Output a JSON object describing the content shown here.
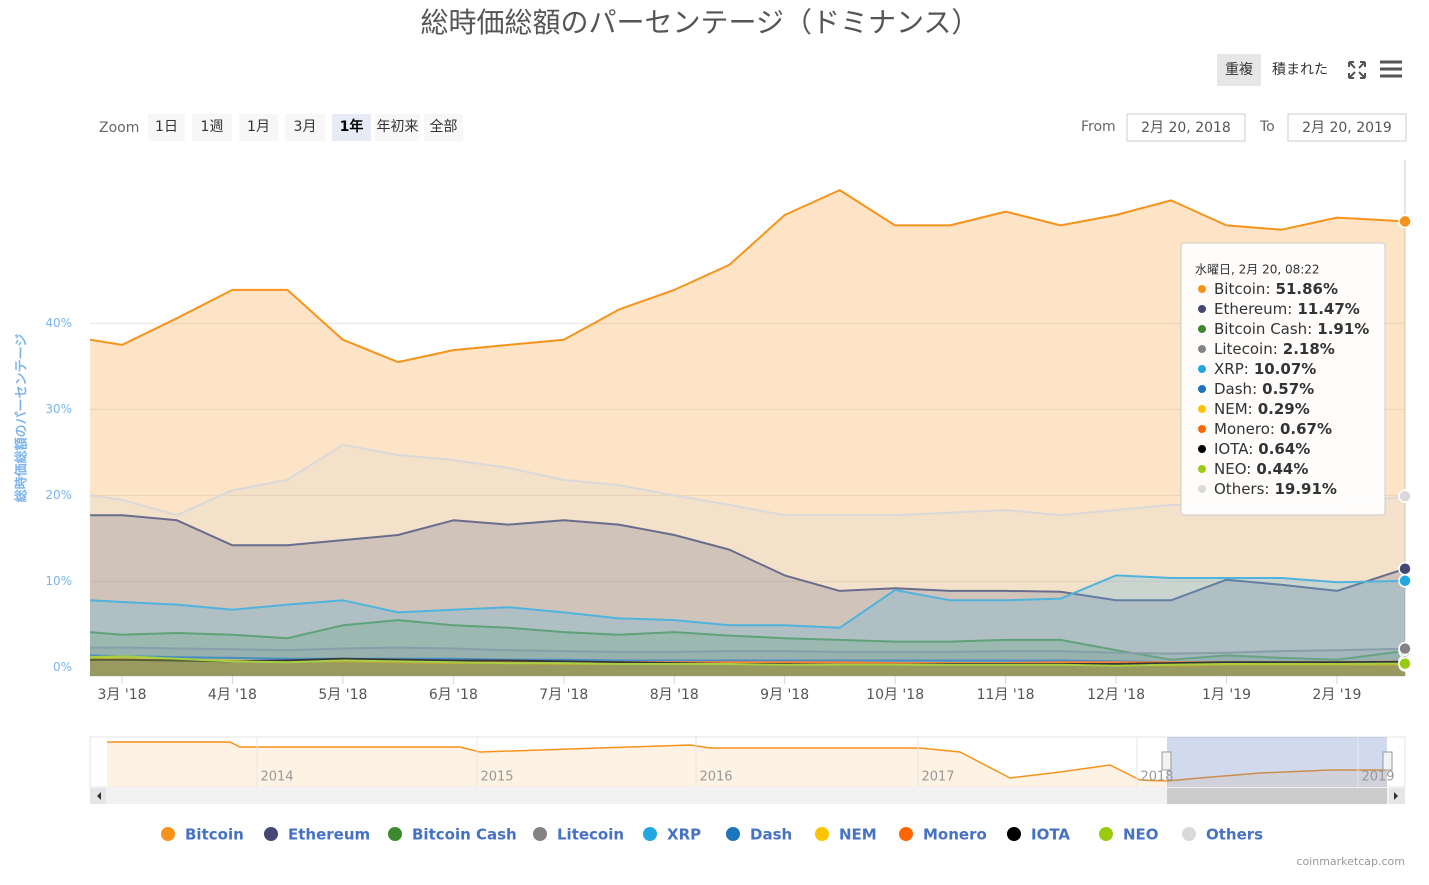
{
  "chart_data": {
    "type": "area",
    "title": "総時価総額のパーセンテージ（ドミナンス）",
    "y_axis_label": "総時価総額のパーセンテージ",
    "categories": [
      null,
      "3月 '18",
      null,
      "4月 '18",
      null,
      "5月 '18",
      null,
      "6月 '18",
      null,
      "7月 '18",
      null,
      "8月 '18",
      null,
      "9月 '18",
      null,
      "10月 '18",
      null,
      "11月 '18",
      null,
      "12月 '18",
      null,
      "1月 '19",
      null,
      "2月 '19",
      null
    ],
    "ylim": [
      -1,
      59
    ],
    "yticks": [
      {
        "value": 0,
        "label": "0%"
      },
      {
        "value": 10,
        "label": "10%"
      },
      {
        "value": 20,
        "label": "20%"
      },
      {
        "value": 30,
        "label": "30%"
      },
      {
        "value": 40,
        "label": "40%"
      }
    ],
    "grid": true,
    "series": [
      {
        "name": "Bitcoin",
        "color": "#f7931a",
        "values": [
          38.1,
          37.5,
          40.6,
          43.9,
          43.9,
          38.1,
          35.5,
          36.9,
          37.5,
          38.1,
          41.6,
          43.9,
          46.8,
          52.6,
          55.5,
          51.4,
          51.4,
          53.0,
          51.4,
          52.6,
          54.3,
          51.4,
          50.9,
          52.3,
          51.86
        ]
      },
      {
        "name": "Ethereum",
        "color": "#434874",
        "values": [
          17.7,
          17.7,
          17.1,
          14.2,
          14.2,
          14.8,
          15.4,
          17.1,
          16.6,
          17.1,
          16.6,
          15.4,
          13.7,
          10.7,
          8.9,
          9.2,
          8.9,
          8.9,
          8.8,
          7.8,
          7.8,
          10.2,
          9.6,
          8.9,
          11.47
        ]
      },
      {
        "name": "Bitcoin Cash",
        "color": "#3c8a2e",
        "values": [
          4.1,
          3.8,
          4.0,
          3.8,
          3.4,
          4.9,
          5.5,
          4.9,
          4.6,
          4.1,
          3.8,
          4.1,
          3.7,
          3.4,
          3.2,
          3.0,
          3.0,
          3.2,
          3.2,
          2.0,
          0.9,
          1.4,
          1.1,
          0.9,
          1.91
        ]
      },
      {
        "name": "Litecoin",
        "color": "#838383",
        "values": [
          2.3,
          2.3,
          2.2,
          2.1,
          2.0,
          2.2,
          2.3,
          2.2,
          2.0,
          1.9,
          1.8,
          1.8,
          1.9,
          1.9,
          1.8,
          1.8,
          1.8,
          1.9,
          1.9,
          1.7,
          1.6,
          1.7,
          1.9,
          2.0,
          2.18
        ]
      },
      {
        "name": "XRP",
        "color": "#23a7e0",
        "values": [
          7.8,
          7.6,
          7.3,
          6.7,
          7.3,
          7.8,
          6.4,
          6.7,
          7.0,
          6.4,
          5.7,
          5.5,
          4.9,
          4.9,
          4.6,
          9.0,
          7.8,
          7.8,
          8.0,
          10.7,
          10.4,
          10.4,
          10.4,
          9.9,
          10.07
        ]
      },
      {
        "name": "Dash",
        "color": "#1c75bc",
        "values": [
          1.4,
          1.3,
          1.2,
          1.1,
          1.0,
          1.0,
          1.0,
          1.0,
          0.9,
          0.9,
          0.8,
          0.8,
          0.8,
          0.8,
          0.8,
          0.8,
          0.8,
          0.8,
          0.8,
          0.7,
          0.6,
          0.6,
          0.6,
          0.6,
          0.57
        ]
      },
      {
        "name": "NEM",
        "color": "#fdc300",
        "values": [
          1.1,
          1.0,
          0.9,
          0.8,
          0.7,
          0.7,
          0.6,
          0.5,
          0.5,
          0.4,
          0.4,
          0.4,
          0.4,
          0.4,
          0.3,
          0.3,
          0.3,
          0.3,
          0.3,
          0.3,
          0.2,
          0.3,
          0.3,
          0.3,
          0.29
        ]
      },
      {
        "name": "Monero",
        "color": "#ff6600",
        "values": [
          0.9,
          0.9,
          0.8,
          0.7,
          0.7,
          0.8,
          0.7,
          0.7,
          0.6,
          0.6,
          0.6,
          0.6,
          0.6,
          0.6,
          0.6,
          0.5,
          0.5,
          0.5,
          0.6,
          0.6,
          0.6,
          0.6,
          0.6,
          0.6,
          0.67
        ]
      },
      {
        "name": "IOTA",
        "color": "#000000",
        "values": [
          0.9,
          0.9,
          0.8,
          0.7,
          0.8,
          1.0,
          0.9,
          0.8,
          0.8,
          0.7,
          0.6,
          0.5,
          0.4,
          0.4,
          0.3,
          0.3,
          0.4,
          0.4,
          0.4,
          0.4,
          0.5,
          0.6,
          0.6,
          0.6,
          0.64
        ]
      },
      {
        "name": "NEO",
        "color": "#99cc11",
        "values": [
          1.2,
          1.3,
          1.0,
          0.7,
          0.6,
          0.8,
          0.7,
          0.6,
          0.5,
          0.5,
          0.4,
          0.4,
          0.4,
          0.3,
          0.3,
          0.3,
          0.3,
          0.3,
          0.3,
          0.2,
          0.3,
          0.4,
          0.4,
          0.4,
          0.44
        ]
      },
      {
        "name": "Others",
        "color": "#d9d9d9",
        "values": [
          20.0,
          19.5,
          17.7,
          20.6,
          21.8,
          25.9,
          24.7,
          24.1,
          23.2,
          21.8,
          21.2,
          20.0,
          18.9,
          17.7,
          17.7,
          17.7,
          18.0,
          18.3,
          17.7,
          18.3,
          18.9,
          18.9,
          18.9,
          18.9,
          19.91
        ]
      }
    ],
    "tooltip": {
      "title": "水曜日, 2月 20, 08:22",
      "separator": ":",
      "labels": [
        "51.86%",
        "11.47%",
        "1.91%",
        "2.18%",
        "10.07%",
        "0.57%",
        "0.29%",
        "0.67%",
        "0.64%",
        "0.44%",
        "19.91%"
      ]
    },
    "navigator": {
      "labels": [
        "2014",
        "2015",
        "2016",
        "2017",
        "2018",
        "2019"
      ]
    }
  },
  "toolbar": {
    "modes": [
      "重複",
      "積まれた"
    ],
    "zoom_label": "Zoom",
    "zoom_buttons": [
      "1日",
      "1週",
      "1月",
      "3月",
      "1年",
      "年初来",
      "全部"
    ],
    "from_label": "From",
    "from": "2月 20, 2018",
    "to_label": "To",
    "to": "2月 20, 2019"
  },
  "credit": "coinmarketcap.com"
}
